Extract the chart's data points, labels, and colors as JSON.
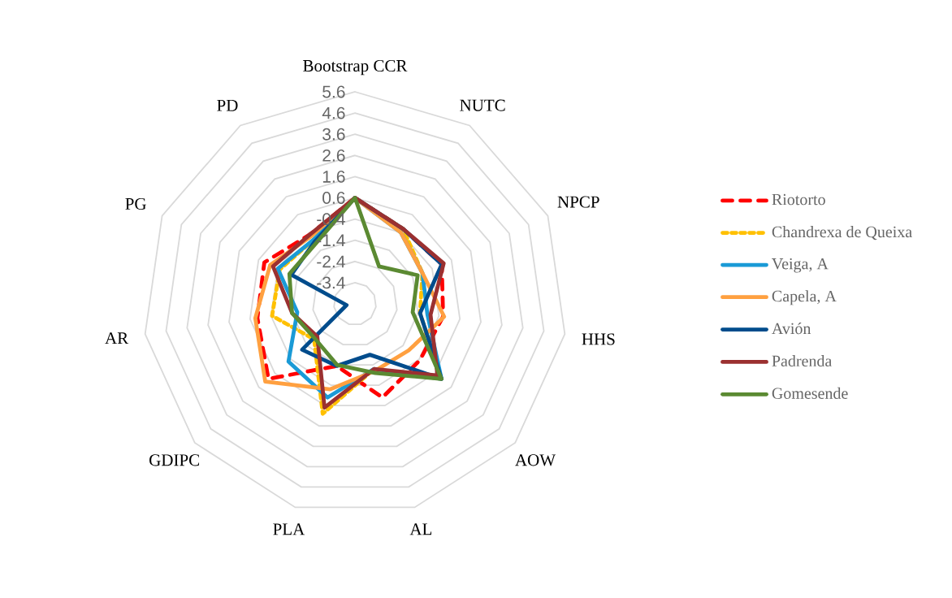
{
  "chart_data": {
    "type": "radar",
    "categories": [
      "Bootstrap CCR",
      "NUTC",
      "NPCP",
      "HHS",
      "AOW",
      "AL",
      "PLA",
      "GDIPC",
      "AR",
      "PG",
      "PD"
    ],
    "ylim": [
      -4.4,
      5.6
    ],
    "yticks": [
      -3.4,
      -2.4,
      -1.4,
      -0.4,
      0.6,
      1.6,
      2.6,
      3.6,
      4.6,
      5.6
    ],
    "grid": true,
    "legend": "right",
    "series": [
      {
        "name": "Riotorto",
        "color": "#ff0000",
        "line_style": "dashed",
        "values": [
          0.6,
          -0.2,
          0.1,
          -0.2,
          -0.35,
          0.2,
          -1.35,
          1.0,
          0.25,
          0.3,
          -0.5
        ]
      },
      {
        "name": "Chandrexa de Queixa",
        "color": "#ffc000",
        "line_style": "dotted",
        "values": [
          0.6,
          -0.2,
          -0.9,
          -1.3,
          1.0,
          -1.2,
          1.0,
          -1.85,
          -0.45,
          -0.5,
          -0.8
        ]
      },
      {
        "name": "Veiga, A",
        "color": "#1a9ad6",
        "line_style": "solid",
        "values": [
          0.6,
          -0.4,
          -0.9,
          -0.95,
          1.0,
          -1.2,
          0.2,
          -0.25,
          -1.65,
          -0.4,
          -0.8
        ]
      },
      {
        "name": "Capela, A",
        "color": "#ffa040",
        "line_style": "solid",
        "values": [
          0.6,
          -0.4,
          -0.9,
          -0.15,
          -1.05,
          -1.1,
          -0.2,
          1.2,
          0.35,
          0.0,
          -0.6
        ]
      },
      {
        "name": "Avión",
        "color": "#004c8c",
        "line_style": "solid",
        "values": [
          0.6,
          -0.2,
          0.1,
          -1.3,
          1.0,
          -1.9,
          -1.35,
          -1.1,
          -4.0,
          -1.1,
          -0.9
        ]
      },
      {
        "name": "Padrenda",
        "color": "#9b3030",
        "line_style": "solid",
        "values": [
          0.6,
          -0.2,
          0.2,
          -0.8,
          0.75,
          -1.2,
          0.7,
          -2.05,
          -1.4,
          -0.15,
          -0.5
        ]
      },
      {
        "name": "Gomesende",
        "color": "#5b8a32",
        "line_style": "solid",
        "values": [
          0.6,
          -2.3,
          -1.15,
          -1.65,
          1.0,
          -1.0,
          -1.4,
          -1.9,
          -1.4,
          -1.0,
          -1.0
        ]
      }
    ]
  }
}
